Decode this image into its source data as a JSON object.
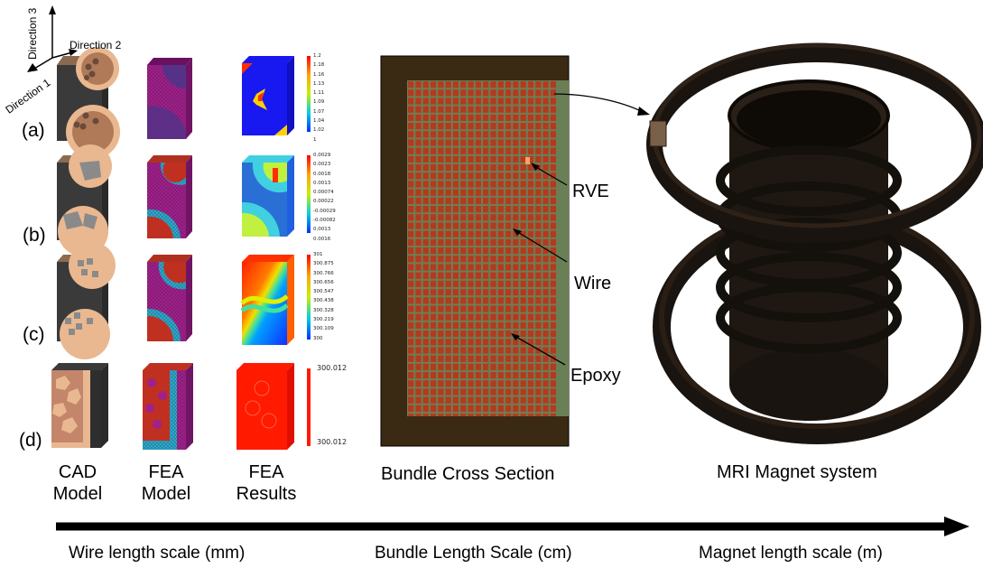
{
  "directions": {
    "d1": "Direction 1",
    "d2": "Direction 2",
    "d3": "Direction 3"
  },
  "rows": [
    "(a)",
    "(b)",
    "(c)",
    "(d)"
  ],
  "columns": {
    "cad": [
      "CAD",
      "Model"
    ],
    "fea": [
      "FEA",
      "Model"
    ],
    "results": [
      "FEA",
      "Results"
    ]
  },
  "legends": {
    "a": [
      "1.2",
      "1.18",
      "1.16",
      "1.13",
      "1.11",
      "1.09",
      "1.07",
      "1.04",
      "1.02",
      "1"
    ],
    "b": [
      "0.0029",
      "0.0023",
      "0.0018",
      "0.0013",
      "0.00074",
      "0.00022",
      "-0.00029",
      "-0.00082",
      "0.0013",
      "0.0016"
    ],
    "c": [
      "301",
      "300.875",
      "300.766",
      "300.656",
      "300.547",
      "300.438",
      "300.328",
      "300.219",
      "300.109",
      "300"
    ],
    "d": [
      "300.012",
      "300.012"
    ]
  },
  "bundle": {
    "title": "Bundle Cross Section",
    "labels": {
      "rve": "RVE",
      "wire": "Wire",
      "epoxy": "Epoxy"
    }
  },
  "magnet": {
    "title": "MRI Magnet system"
  },
  "scales": {
    "wire": "Wire length scale (mm)",
    "bundle": "Bundle Length Scale (cm)",
    "magnet": "Magnet length scale (m)"
  },
  "colors": {
    "wire_red": "#b5391d",
    "epoxy_green": "#6b7f57",
    "frame_brown": "#3a2a14",
    "copper": "#e9b890",
    "fea_magenta": "#a0208c",
    "fea_blue": "#2a6fd6",
    "dark_ring": "#1a1410"
  }
}
